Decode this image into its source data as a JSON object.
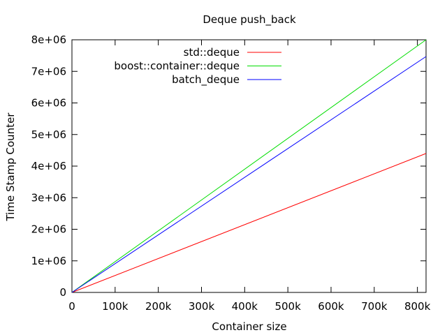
{
  "chart_data": {
    "type": "line",
    "title": "Deque push_back",
    "xlabel": "Container size",
    "ylabel": "Time Stamp Counter",
    "xlim": [
      0,
      820000
    ],
    "ylim": [
      0,
      8000000
    ],
    "x_ticks": [
      {
        "value": 0,
        "label": "0"
      },
      {
        "value": 100000,
        "label": "100k"
      },
      {
        "value": 200000,
        "label": "200k"
      },
      {
        "value": 300000,
        "label": "300k"
      },
      {
        "value": 400000,
        "label": "400k"
      },
      {
        "value": 500000,
        "label": "500k"
      },
      {
        "value": 600000,
        "label": "600k"
      },
      {
        "value": 700000,
        "label": "700k"
      },
      {
        "value": 800000,
        "label": "800k"
      }
    ],
    "y_ticks": [
      {
        "value": 0,
        "label": "0"
      },
      {
        "value": 1000000,
        "label": "1e+06"
      },
      {
        "value": 2000000,
        "label": "2e+06"
      },
      {
        "value": 3000000,
        "label": "3e+06"
      },
      {
        "value": 4000000,
        "label": "4e+06"
      },
      {
        "value": 5000000,
        "label": "5e+06"
      },
      {
        "value": 6000000,
        "label": "6e+06"
      },
      {
        "value": 7000000,
        "label": "7e+06"
      },
      {
        "value": 8000000,
        "label": "8e+06"
      }
    ],
    "grid": false,
    "legend_position": "top-right",
    "series": [
      {
        "name": "std::deque",
        "color": "#ff0000",
        "x": [
          0,
          820000
        ],
        "y": [
          0,
          4400000
        ]
      },
      {
        "name": "boost::container::deque",
        "color": "#00dd00",
        "x": [
          0,
          820000
        ],
        "y": [
          0,
          8000000
        ]
      },
      {
        "name": "batch_deque",
        "color": "#0000ff",
        "x": [
          0,
          820000
        ],
        "y": [
          0,
          7470000
        ]
      }
    ]
  }
}
